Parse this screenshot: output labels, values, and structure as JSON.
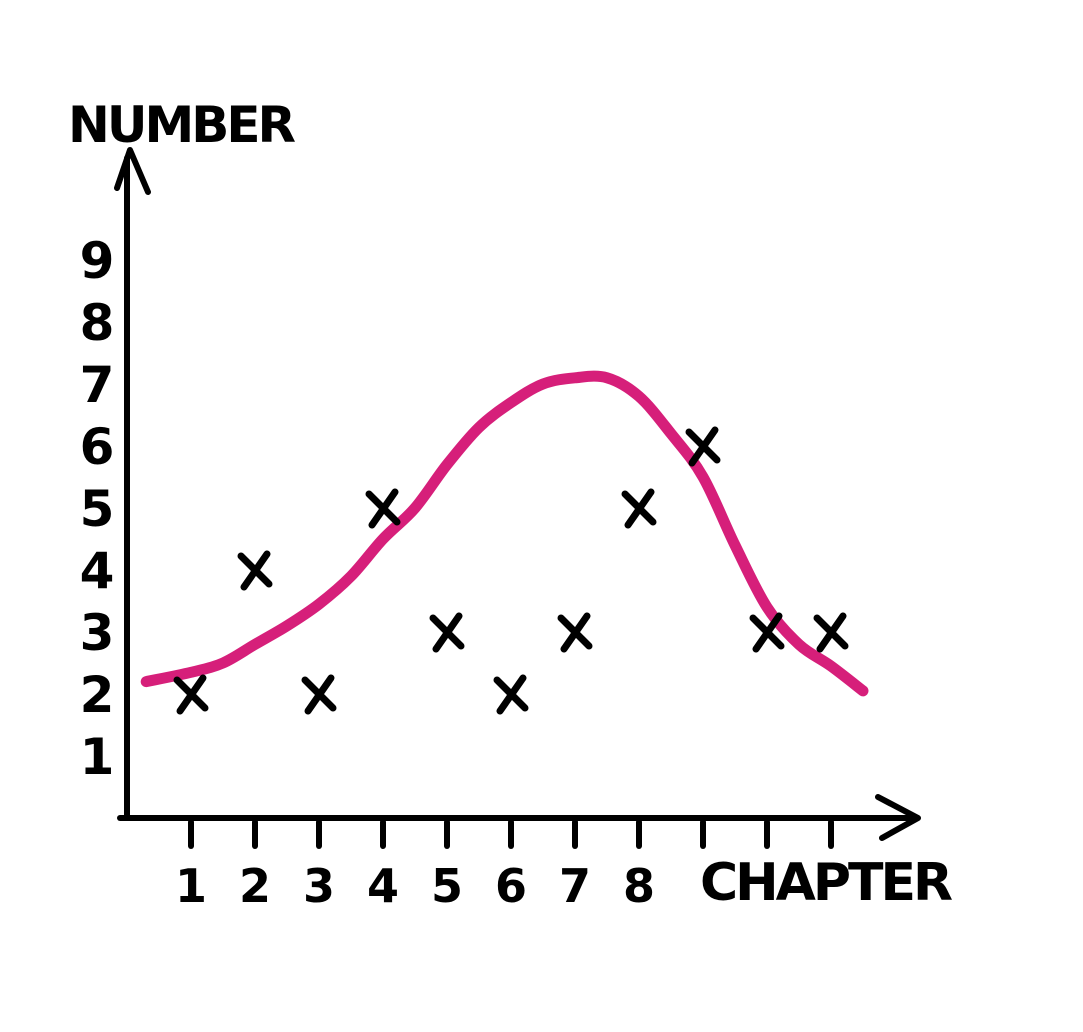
{
  "chart_data": {
    "type": "scatter",
    "title": "",
    "xlabel": "CHAPTER",
    "ylabel": "NUMBER",
    "x_ticks": [
      "1",
      "2",
      "3",
      "4",
      "5",
      "6",
      "7",
      "8",
      "",
      "",
      ""
    ],
    "y_ticks": [
      "1",
      "2",
      "3",
      "4",
      "5",
      "6",
      "7",
      "8",
      "9"
    ],
    "xlim": [
      0,
      11.5
    ],
    "ylim": [
      0,
      10
    ],
    "grid": false,
    "series": [
      {
        "type": "scatter",
        "marker": "x",
        "color": "#000000",
        "points": [
          {
            "x": 1,
            "y": 2
          },
          {
            "x": 2,
            "y": 4
          },
          {
            "x": 3,
            "y": 2
          },
          {
            "x": 4,
            "y": 5
          },
          {
            "x": 5,
            "y": 3
          },
          {
            "x": 6,
            "y": 2
          },
          {
            "x": 7,
            "y": 3
          },
          {
            "x": 8,
            "y": 5
          },
          {
            "x": 9,
            "y": 6
          },
          {
            "x": 10,
            "y": 3
          },
          {
            "x": 11,
            "y": 3
          }
        ]
      },
      {
        "type": "line",
        "color": "#d61f7a",
        "points": [
          {
            "x": 0.3,
            "y": 2.2
          },
          {
            "x": 1,
            "y": 2.35
          },
          {
            "x": 1.5,
            "y": 2.5
          },
          {
            "x": 2,
            "y": 2.8
          },
          {
            "x": 2.5,
            "y": 3.1
          },
          {
            "x": 3,
            "y": 3.45
          },
          {
            "x": 3.5,
            "y": 3.9
          },
          {
            "x": 4,
            "y": 4.5
          },
          {
            "x": 4.5,
            "y": 5.0
          },
          {
            "x": 5,
            "y": 5.7
          },
          {
            "x": 5.5,
            "y": 6.3
          },
          {
            "x": 6,
            "y": 6.7
          },
          {
            "x": 6.5,
            "y": 7.0
          },
          {
            "x": 7,
            "y": 7.1
          },
          {
            "x": 7.5,
            "y": 7.1
          },
          {
            "x": 8,
            "y": 6.8
          },
          {
            "x": 8.5,
            "y": 6.2
          },
          {
            "x": 9,
            "y": 5.5
          },
          {
            "x": 9.5,
            "y": 4.4
          },
          {
            "x": 10,
            "y": 3.4
          },
          {
            "x": 10.5,
            "y": 2.8
          },
          {
            "x": 11,
            "y": 2.45
          },
          {
            "x": 11.5,
            "y": 2.05
          }
        ]
      }
    ]
  }
}
